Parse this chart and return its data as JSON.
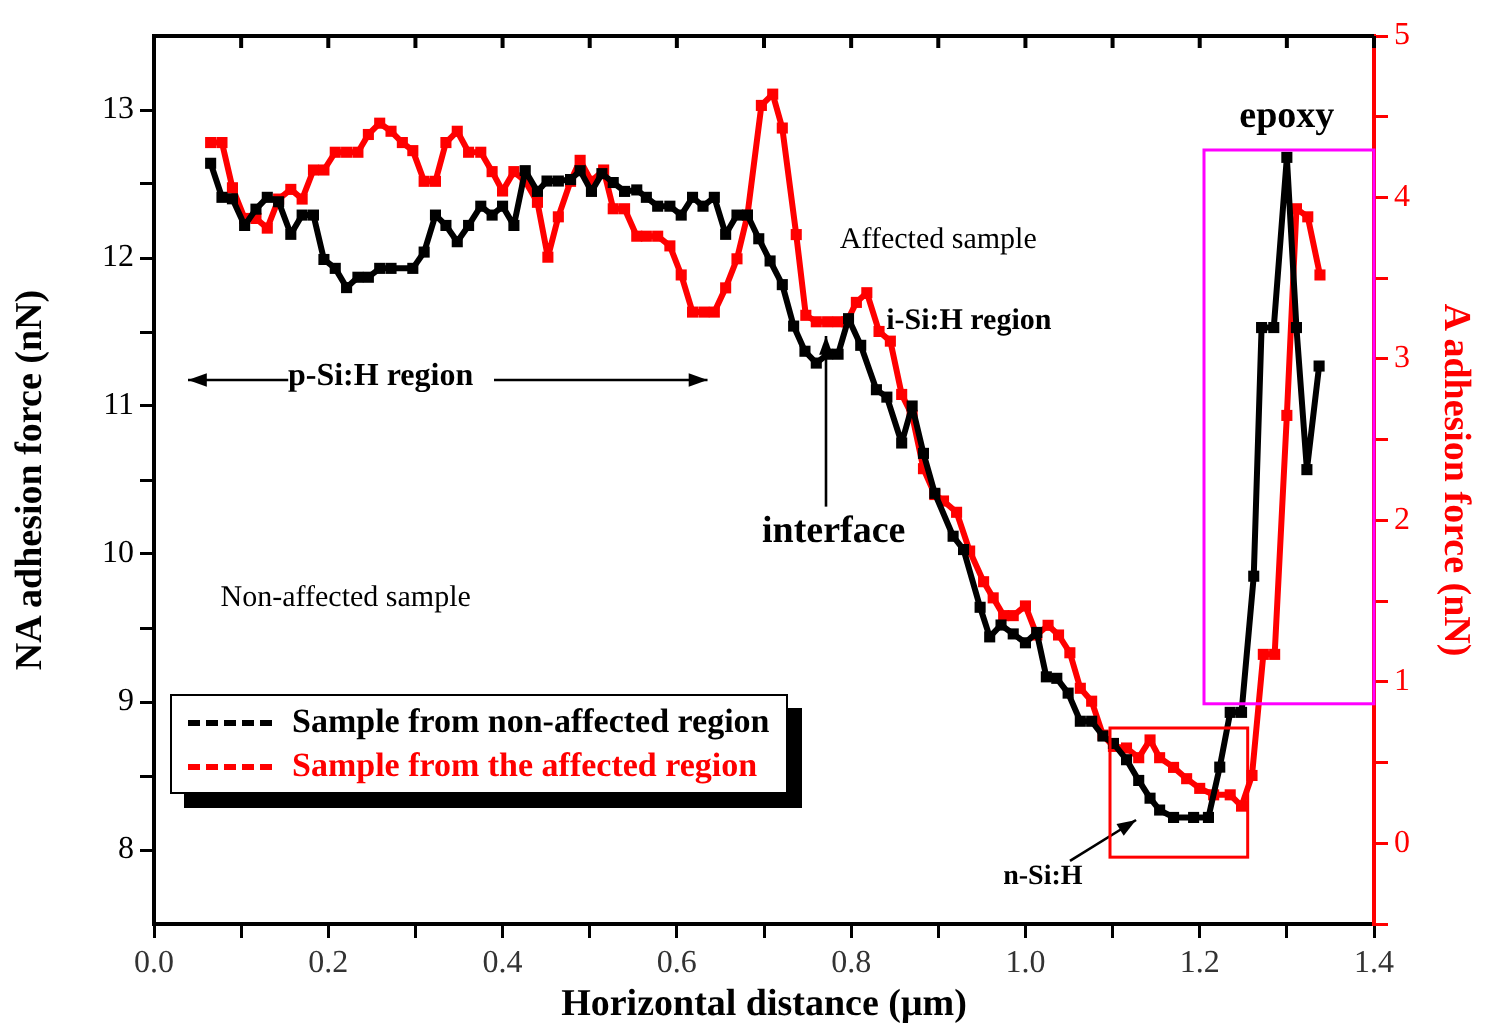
{
  "chart_data": {
    "type": "line",
    "xlabel": "Horizontal distance (μm)",
    "ylabel": "NA adhesion force (nN)",
    "y2label": "A adhesion force (nN)",
    "xlim": [
      0,
      1.4
    ],
    "xticks": [
      {
        "value": 0,
        "label": "0.0"
      },
      {
        "value": 0.1,
        "label": null
      },
      0.2,
      {
        "value": 0.3,
        "label": null
      },
      0.4,
      {
        "value": 0.5,
        "label": null
      },
      0.6,
      {
        "value": 0.7,
        "label": null
      },
      0.8,
      {
        "value": 0.9,
        "label": null
      },
      {
        "value": 1,
        "label": "1.0"
      },
      {
        "value": 1.1,
        "label": null
      },
      1.2,
      {
        "value": 1.3,
        "label": null
      },
      1.4
    ],
    "ylim": [
      7.5,
      13.5
    ],
    "yticks": [
      8,
      {
        "value": 8.5,
        "label": null
      },
      9,
      {
        "value": 9.5,
        "label": null
      },
      10,
      {
        "value": 10.5,
        "label": null
      },
      11,
      {
        "value": 11.5,
        "label": null
      },
      12,
      {
        "value": 12.5,
        "label": null
      },
      13
    ],
    "y2lim": [
      -0.5,
      5
    ],
    "y2ticks": [
      {
        "value": -0.5,
        "label": null
      },
      0,
      {
        "value": 0.5,
        "label": null
      },
      1,
      {
        "value": 1.5,
        "label": null
      },
      2,
      {
        "value": 2.5,
        "label": null
      },
      3,
      {
        "value": 3.5,
        "label": null
      },
      4,
      {
        "value": 4.5,
        "label": null
      },
      5
    ],
    "grid": false,
    "legend": "bottom left",
    "marker": "square",
    "line_style": "solid",
    "annotations": [
      "p-Si:H region",
      "Affected sample",
      "i-Si:H region",
      {
        "text": "interface",
        "x": 0.77,
        "y": 11.5
      },
      "Non-affected sample",
      "n-Si:H",
      "epoxy"
    ],
    "series": [
      {
        "name": "Sample from non-affected region",
        "color": "#000000",
        "x": [
          0.065,
          0.078,
          0.09,
          0.104,
          0.117,
          0.13,
          0.143,
          0.157,
          0.17,
          0.183,
          0.195,
          0.208,
          0.221,
          0.234,
          0.246,
          0.259,
          0.272,
          0.297,
          0.31,
          0.323,
          0.335,
          0.348,
          0.361,
          0.375,
          0.388,
          0.4,
          0.413,
          0.426,
          0.44,
          0.451,
          0.464,
          0.478,
          0.489,
          0.502,
          0.514,
          0.527,
          0.54,
          0.554,
          0.565,
          0.578,
          0.592,
          0.605,
          0.618,
          0.63,
          0.643,
          0.656,
          0.669,
          0.681,
          0.694,
          0.707,
          0.721,
          0.734,
          0.747,
          0.76,
          0.773,
          0.785,
          0.797,
          0.811,
          0.829,
          0.841,
          0.858,
          0.87,
          0.883,
          0.896,
          0.917,
          0.929,
          0.948,
          0.959,
          0.972,
          0.986,
          1.0,
          1.013,
          1.024,
          1.036,
          1.049,
          1.063,
          1.076,
          1.089,
          1.101,
          1.116,
          1.13,
          1.143,
          1.154,
          1.17,
          1.193,
          1.21,
          1.223,
          1.235,
          1.248,
          1.262,
          1.271,
          1.285,
          1.3,
          1.311,
          1.323,
          1.337
        ],
        "values": [
          12.64,
          12.41,
          12.4,
          12.22,
          12.33,
          12.41,
          12.38,
          12.16,
          12.29,
          12.29,
          11.99,
          11.93,
          11.8,
          11.87,
          11.87,
          11.93,
          11.93,
          11.93,
          12.04,
          12.29,
          12.22,
          12.11,
          12.22,
          12.35,
          12.29,
          12.35,
          12.22,
          12.59,
          12.45,
          12.52,
          12.52,
          12.53,
          12.59,
          12.45,
          12.57,
          12.51,
          12.45,
          12.46,
          12.41,
          12.35,
          12.35,
          12.29,
          12.41,
          12.35,
          12.41,
          12.16,
          12.29,
          12.29,
          12.13,
          11.98,
          11.82,
          11.54,
          11.37,
          11.29,
          11.35,
          11.35,
          11.59,
          11.41,
          11.11,
          11.06,
          10.75,
          11.0,
          10.68,
          10.41,
          10.12,
          10.03,
          9.64,
          9.44,
          9.52,
          9.46,
          9.4,
          9.47,
          9.17,
          9.16,
          9.06,
          8.87,
          8.87,
          8.77,
          8.72,
          8.61,
          8.47,
          8.35,
          8.27,
          8.22,
          8.22,
          8.22,
          8.56,
          8.93,
          8.93,
          9.85,
          11.53,
          11.53,
          12.68,
          11.53,
          10.57,
          11.27
        ]
      },
      {
        "name": "Sample from the affected region",
        "color": "#ff0000",
        "axis": "y2",
        "x": [
          0.065,
          0.078,
          0.09,
          0.104,
          0.117,
          0.13,
          0.143,
          0.157,
          0.17,
          0.183,
          0.195,
          0.208,
          0.221,
          0.234,
          0.246,
          0.259,
          0.272,
          0.285,
          0.297,
          0.31,
          0.323,
          0.335,
          0.348,
          0.361,
          0.375,
          0.388,
          0.4,
          0.413,
          0.426,
          0.44,
          0.452,
          0.464,
          0.478,
          0.489,
          0.502,
          0.516,
          0.527,
          0.54,
          0.554,
          0.565,
          0.578,
          0.592,
          0.605,
          0.618,
          0.631,
          0.643,
          0.656,
          0.669,
          0.681,
          0.697,
          0.71,
          0.721,
          0.737,
          0.748,
          0.76,
          0.773,
          0.785,
          0.795,
          0.806,
          0.818,
          0.832,
          0.845,
          0.858,
          0.87,
          0.883,
          0.896,
          0.906,
          0.921,
          0.936,
          0.952,
          0.963,
          0.975,
          0.986,
          1.0,
          1.013,
          1.026,
          1.038,
          1.051,
          1.063,
          1.076,
          1.089,
          1.101,
          1.116,
          1.13,
          1.143,
          1.154,
          1.17,
          1.185,
          1.2,
          1.216,
          1.235,
          1.248,
          1.26,
          1.273,
          1.286,
          1.3,
          1.311,
          1.324,
          1.338
        ],
        "values": [
          4.34,
          4.34,
          4.06,
          3.87,
          3.87,
          3.81,
          3.99,
          4.05,
          3.99,
          4.17,
          4.17,
          4.28,
          4.28,
          4.28,
          4.39,
          4.46,
          4.41,
          4.34,
          4.29,
          4.1,
          4.1,
          4.34,
          4.41,
          4.28,
          4.28,
          4.16,
          4.04,
          4.16,
          4.1,
          3.97,
          3.63,
          3.88,
          4.1,
          4.23,
          4.1,
          4.17,
          3.93,
          3.93,
          3.76,
          3.76,
          3.76,
          3.7,
          3.52,
          3.29,
          3.29,
          3.29,
          3.44,
          3.62,
          3.89,
          4.57,
          4.64,
          4.43,
          3.77,
          3.27,
          3.23,
          3.23,
          3.23,
          3.23,
          3.35,
          3.41,
          3.17,
          3.11,
          2.78,
          2.65,
          2.32,
          2.16,
          2.12,
          2.05,
          1.81,
          1.62,
          1.52,
          1.41,
          1.41,
          1.47,
          1.29,
          1.35,
          1.29,
          1.18,
          0.96,
          0.88,
          0.67,
          0.6,
          0.59,
          0.53,
          0.64,
          0.53,
          0.47,
          0.4,
          0.34,
          0.3,
          0.3,
          0.23,
          0.42,
          1.17,
          1.17,
          2.65,
          3.93,
          3.88,
          3.52
        ]
      }
    ]
  }
}
